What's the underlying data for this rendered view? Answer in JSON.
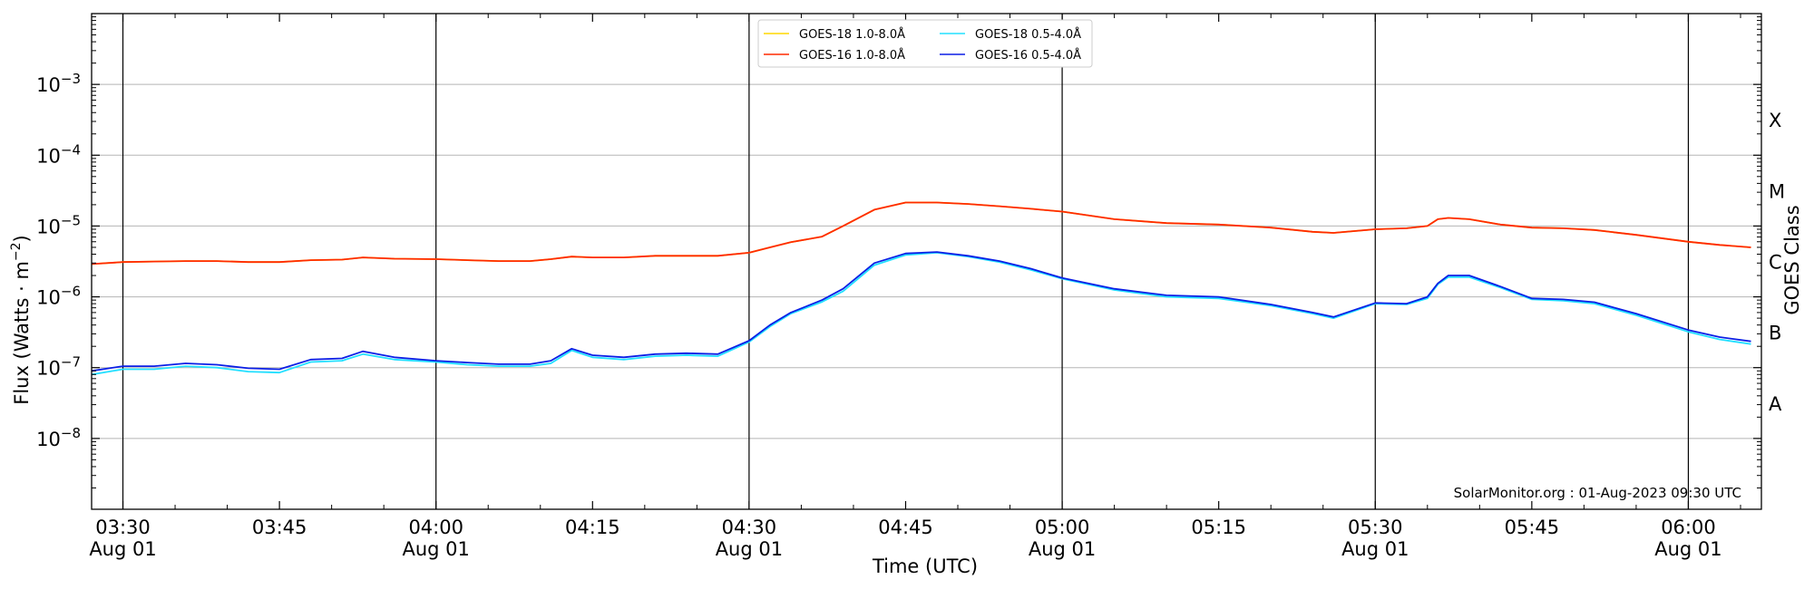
{
  "chart_data": {
    "type": "line",
    "xlabel": "Time (UTC)",
    "ylabel": "Flux (Watts · m",
    "ylabel_exponent": "−2",
    "ylabel_close": ")",
    "ylabel_right": "GOES Class",
    "y_scale": "log",
    "xlim": [
      "2023-08-01 03:27",
      "2023-08-01 06:07"
    ],
    "ylim": [
      1e-09,
      0.01
    ],
    "grid": "horizontal at decades",
    "legend_position": "top-center",
    "credit": "SolarMonitor.org : 01-Aug-2023 09:30 UTC",
    "y_ticks": [
      {
        "value": 1e-08,
        "base": "10",
        "exp": "−8"
      },
      {
        "value": 1e-07,
        "base": "10",
        "exp": "−7"
      },
      {
        "value": 1e-06,
        "base": "10",
        "exp": "−6"
      },
      {
        "value": 1e-05,
        "base": "10",
        "exp": "−5"
      },
      {
        "value": 0.0001,
        "base": "10",
        "exp": "−4"
      },
      {
        "value": 0.001,
        "base": "10",
        "exp": "−3"
      }
    ],
    "goes_classes": [
      {
        "label": "A",
        "value": 3.16e-08
      },
      {
        "label": "B",
        "value": 3.16e-07
      },
      {
        "label": "C",
        "value": 3.16e-06
      },
      {
        "label": "M",
        "value": 3.16e-05
      },
      {
        "label": "X",
        "value": 0.000316
      }
    ],
    "x_ticks": [
      {
        "time": "03:30",
        "line1": "03:30",
        "line2": "Aug 01",
        "major": true
      },
      {
        "time": "03:45",
        "line1": "03:45",
        "line2": "",
        "major": false
      },
      {
        "time": "04:00",
        "line1": "04:00",
        "line2": "Aug 01",
        "major": true
      },
      {
        "time": "04:15",
        "line1": "04:15",
        "line2": "",
        "major": false
      },
      {
        "time": "04:30",
        "line1": "04:30",
        "line2": "Aug 01",
        "major": true
      },
      {
        "time": "04:45",
        "line1": "04:45",
        "line2": "",
        "major": false
      },
      {
        "time": "05:00",
        "line1": "05:00",
        "line2": "Aug 01",
        "major": true
      },
      {
        "time": "05:15",
        "line1": "05:15",
        "line2": "",
        "major": false
      },
      {
        "time": "05:30",
        "line1": "05:30",
        "line2": "Aug 01",
        "major": true
      },
      {
        "time": "05:45",
        "line1": "05:45",
        "line2": "",
        "major": false
      },
      {
        "time": "06:00",
        "line1": "06:00",
        "line2": "Aug 01",
        "major": true
      }
    ],
    "x": [
      "03:27",
      "03:30",
      "03:33",
      "03:36",
      "03:39",
      "03:42",
      "03:45",
      "03:48",
      "03:51",
      "03:53",
      "03:56",
      "04:00",
      "04:03",
      "04:06",
      "04:09",
      "04:11",
      "04:13",
      "04:15",
      "04:18",
      "04:21",
      "04:24",
      "04:27",
      "04:30",
      "04:32",
      "04:34",
      "04:37",
      "04:39",
      "04:42",
      "04:45",
      "04:48",
      "04:51",
      "04:54",
      "04:57",
      "05:00",
      "05:05",
      "05:10",
      "05:15",
      "05:20",
      "05:24",
      "05:26",
      "05:30",
      "05:33",
      "05:35",
      "05:36",
      "05:37",
      "05:39",
      "05:42",
      "05:45",
      "05:48",
      "05:51",
      "05:55",
      "06:00",
      "06:03",
      "06:06"
    ],
    "series": [
      {
        "name": "GOES-18 1.0-8.0Å",
        "color": "#ffd700",
        "values": [
          2.9e-06,
          3.1e-06,
          3.15e-06,
          3.2e-06,
          3.2e-06,
          3.1e-06,
          3.1e-06,
          3.3e-06,
          3.35e-06,
          3.6e-06,
          3.45e-06,
          3.4e-06,
          3.3e-06,
          3.2e-06,
          3.2e-06,
          3.4e-06,
          3.7e-06,
          3.6e-06,
          3.6e-06,
          3.8e-06,
          3.8e-06,
          3.8e-06,
          4.2e-06,
          5e-06,
          5.9e-06,
          7.1e-06,
          1e-05,
          1.7e-05,
          2.15e-05,
          2.15e-05,
          2.05e-05,
          1.9e-05,
          1.75e-05,
          1.6e-05,
          1.25e-05,
          1.1e-05,
          1.05e-05,
          9.5e-06,
          8.3e-06,
          8e-06,
          9e-06,
          9.3e-06,
          1e-05,
          1.25e-05,
          1.3e-05,
          1.25e-05,
          1.05e-05,
          9.5e-06,
          9.3e-06,
          8.8e-06,
          7.5e-06,
          6e-06,
          5.4e-06,
          5e-06
        ]
      },
      {
        "name": "GOES-16 1.0-8.0Å",
        "color": "#ff2a00",
        "values": [
          2.9e-06,
          3.1e-06,
          3.15e-06,
          3.2e-06,
          3.2e-06,
          3.1e-06,
          3.1e-06,
          3.3e-06,
          3.35e-06,
          3.6e-06,
          3.45e-06,
          3.4e-06,
          3.3e-06,
          3.2e-06,
          3.2e-06,
          3.4e-06,
          3.7e-06,
          3.6e-06,
          3.6e-06,
          3.8e-06,
          3.8e-06,
          3.8e-06,
          4.2e-06,
          5e-06,
          5.9e-06,
          7.1e-06,
          1e-05,
          1.7e-05,
          2.15e-05,
          2.15e-05,
          2.05e-05,
          1.9e-05,
          1.75e-05,
          1.6e-05,
          1.25e-05,
          1.1e-05,
          1.05e-05,
          9.5e-06,
          8.3e-06,
          8e-06,
          9e-06,
          9.3e-06,
          1e-05,
          1.25e-05,
          1.3e-05,
          1.25e-05,
          1.05e-05,
          9.5e-06,
          9.3e-06,
          8.8e-06,
          7.5e-06,
          6e-06,
          5.4e-06,
          5e-06
        ]
      },
      {
        "name": "GOES-18 0.5-4.0Å",
        "color": "#22e0ff",
        "values": [
          8e-08,
          9.5e-08,
          9.5e-08,
          1.05e-07,
          1e-07,
          8.8e-08,
          8.5e-08,
          1.2e-07,
          1.25e-07,
          1.55e-07,
          1.3e-07,
          1.2e-07,
          1.1e-07,
          1.05e-07,
          1.05e-07,
          1.15e-07,
          1.75e-07,
          1.4e-07,
          1.3e-07,
          1.45e-07,
          1.5e-07,
          1.45e-07,
          2.3e-07,
          3.8e-07,
          5.8e-07,
          8.5e-07,
          1.2e-06,
          2.8e-06,
          3.9e-06,
          4.2e-06,
          3.7e-06,
          3.1e-06,
          2.4e-06,
          1.8e-06,
          1.25e-06,
          1e-06,
          9.5e-07,
          7.5e-07,
          5.8e-07,
          5e-07,
          8e-07,
          7.8e-07,
          9.5e-07,
          1.5e-06,
          1.9e-06,
          1.9e-06,
          1.35e-06,
          9.2e-07,
          8.8e-07,
          8e-07,
          5.5e-07,
          3.2e-07,
          2.5e-07,
          2.15e-07
        ]
      },
      {
        "name": "GOES-16 0.5-4.0Å",
        "color": "#0b1fe6",
        "values": [
          9e-08,
          1.05e-07,
          1.05e-07,
          1.15e-07,
          1.1e-07,
          9.8e-08,
          9.5e-08,
          1.3e-07,
          1.35e-07,
          1.7e-07,
          1.4e-07,
          1.25e-07,
          1.18e-07,
          1.12e-07,
          1.12e-07,
          1.25e-07,
          1.85e-07,
          1.5e-07,
          1.4e-07,
          1.55e-07,
          1.6e-07,
          1.55e-07,
          2.4e-07,
          4e-07,
          6e-07,
          9e-07,
          1.3e-06,
          3e-06,
          4.1e-06,
          4.3e-06,
          3.8e-06,
          3.2e-06,
          2.5e-06,
          1.85e-06,
          1.3e-06,
          1.05e-06,
          1e-06,
          7.8e-07,
          6e-07,
          5.2e-07,
          8.2e-07,
          8e-07,
          1e-06,
          1.55e-06,
          2e-06,
          2e-06,
          1.4e-06,
          9.5e-07,
          9.2e-07,
          8.4e-07,
          5.8e-07,
          3.4e-07,
          2.7e-07,
          2.35e-07
        ]
      }
    ]
  }
}
